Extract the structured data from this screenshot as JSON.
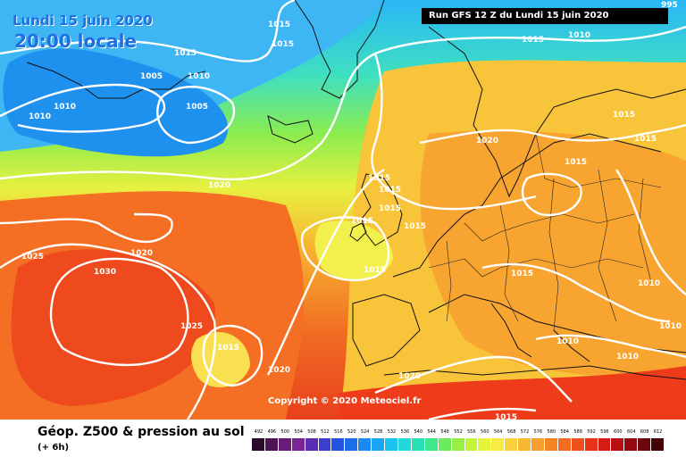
{
  "header": {
    "date_label": "Lundi 15 juin 2020",
    "time_label": "20:00 locale",
    "run_label": "Run GFS 12 Z du Lundi 15 juin 2020"
  },
  "map": {
    "isobar_color": "#ffffff",
    "pressure_labels": [
      "995",
      "1015",
      "1015",
      "1015",
      "1010",
      "1005",
      "1010",
      "1010",
      "1005",
      "1010",
      "1020",
      "1015",
      "1015",
      "1015",
      "1015",
      "1015",
      "1020",
      "1015",
      "1015",
      "1025",
      "1030",
      "1015",
      "1015",
      "1020",
      "1025",
      "1015",
      "1020",
      "1015",
      "1010",
      "1010",
      "1020",
      "1010",
      "1010",
      "1015",
      "1015"
    ],
    "copyright": "Copyright © 2020 Meteociel.fr"
  },
  "footer": {
    "title": "Géop. Z500 & pression au sol",
    "subtitle": "(+ 6h)"
  },
  "scale": {
    "values": [
      "492",
      "496",
      "500",
      "504",
      "508",
      "512",
      "516",
      "520",
      "524",
      "528",
      "532",
      "536",
      "540",
      "544",
      "548",
      "552",
      "556",
      "560",
      "564",
      "568",
      "572",
      "576",
      "580",
      "584",
      "588",
      "592",
      "596",
      "600",
      "604",
      "608",
      "612"
    ],
    "colors": [
      "#2c0a2c",
      "#4d1352",
      "#6a1a78",
      "#7a2496",
      "#5a2db4",
      "#3b3fcc",
      "#2454de",
      "#1a6ee8",
      "#1a8af0",
      "#1aa6f4",
      "#1ac2f0",
      "#22d8d8",
      "#28e0b4",
      "#40e68a",
      "#6aec5e",
      "#98f046",
      "#c4f43a",
      "#e6f43a",
      "#f8ec44",
      "#f8d23c",
      "#f8b834",
      "#f89e2c",
      "#f68426",
      "#f46a20",
      "#f0501c",
      "#e63218",
      "#d41c14",
      "#b61012",
      "#920a10",
      "#6c060c",
      "#440408"
    ]
  }
}
